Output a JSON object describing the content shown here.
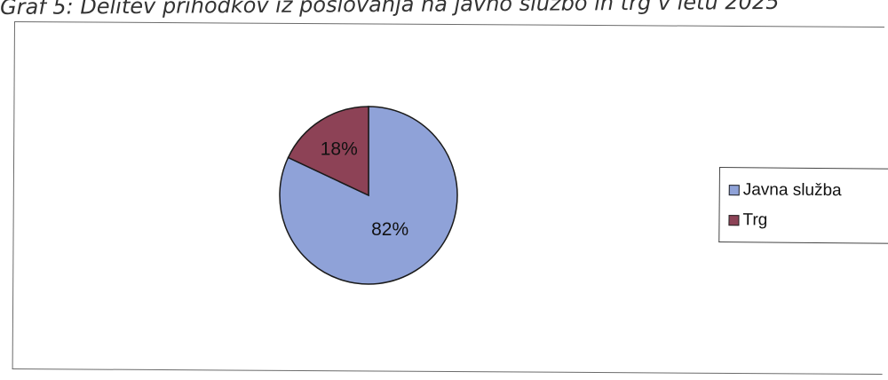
{
  "title": "Graf 5: Delitev prihodkov iz poslovanja na javno službo in trg v letu 2025",
  "chart_data": {
    "type": "pie",
    "title": "",
    "series": [
      {
        "name": "Javna služba",
        "value": 82,
        "label": "82%",
        "color": "#8fa2d8"
      },
      {
        "name": "Trg",
        "value": 18,
        "label": "18%",
        "color": "#8d4256"
      }
    ],
    "legend_position": "right"
  },
  "legend": {
    "items": [
      "Javna služba",
      "Trg"
    ]
  }
}
